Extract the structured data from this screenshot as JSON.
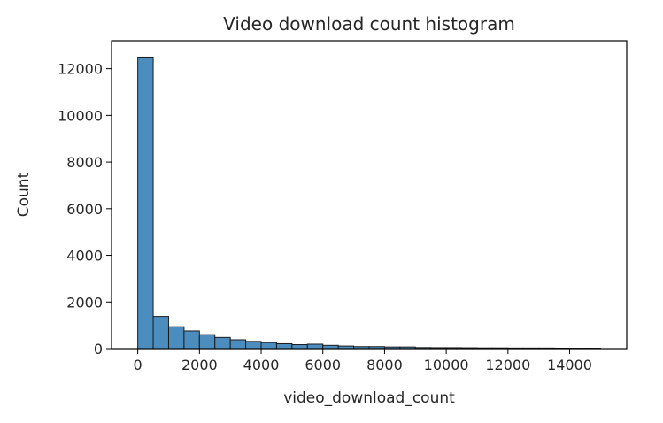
{
  "chart_data": {
    "type": "bar",
    "title": "Video download count histogram",
    "xlabel": "video_download_count",
    "ylabel": "Count",
    "xlim": [
      -850,
      15850
    ],
    "ylim": [
      0,
      13200
    ],
    "xticks": [
      0,
      2000,
      4000,
      6000,
      8000,
      10000,
      12000,
      14000
    ],
    "yticks": [
      0,
      2000,
      4000,
      6000,
      8000,
      10000,
      12000
    ],
    "bin_width": 500,
    "bin_edges": [
      0,
      500,
      1000,
      1500,
      2000,
      2500,
      3000,
      3500,
      4000,
      4500,
      5000,
      5500,
      6000,
      6500,
      7000,
      7500,
      8000,
      8500,
      9000,
      9500,
      10000,
      10500,
      11000,
      11500,
      12000,
      12500,
      13000,
      13500,
      14000,
      14500,
      15000
    ],
    "counts": [
      12500,
      1380,
      940,
      760,
      600,
      480,
      380,
      310,
      260,
      210,
      170,
      190,
      140,
      110,
      85,
      85,
      70,
      70,
      45,
      40,
      40,
      35,
      30,
      30,
      25,
      25,
      25,
      20,
      18,
      18
    ],
    "bar_color": "#4c8dbf",
    "edge_color": "#1a1a1a",
    "grid": false
  }
}
